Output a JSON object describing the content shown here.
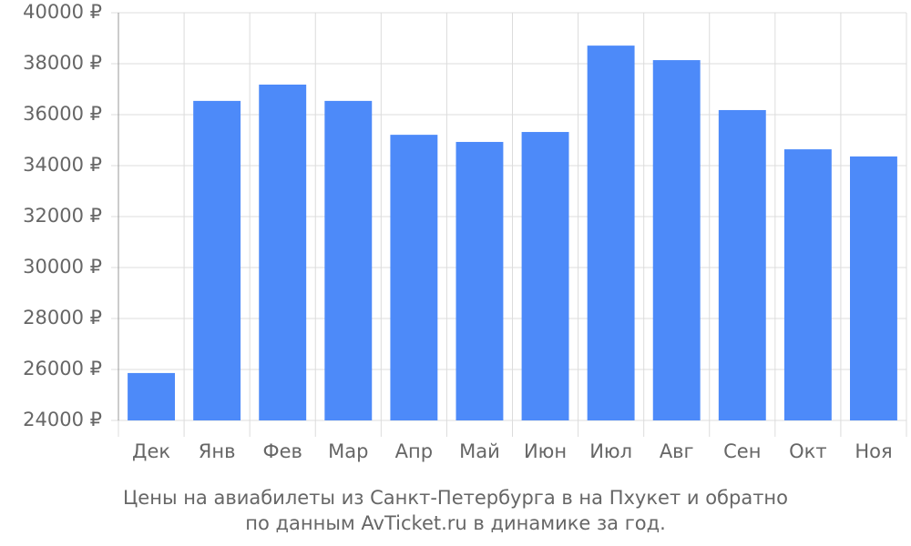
{
  "chart_data": {
    "type": "bar",
    "title": [
      "Цены на авиабилеты из Санкт-Петербурга в на Пхукет и обратно",
      "по данным AvTicket.ru в динамике за год."
    ],
    "categories": [
      "Дек",
      "Янв",
      "Фев",
      "Мар",
      "Апр",
      "Май",
      "Июн",
      "Июл",
      "Авг",
      "Сен",
      "Окт",
      "Ноя"
    ],
    "values": [
      25860,
      36540,
      37180,
      36540,
      35210,
      34930,
      35320,
      38710,
      38140,
      36180,
      34640,
      34360
    ],
    "color": "#4d8af9",
    "ylim": [
      24000,
      40000
    ],
    "yticks": [
      {
        "value": 24000,
        "label": "24000 ₽"
      },
      {
        "value": 26000,
        "label": "26000 ₽"
      },
      {
        "value": 28000,
        "label": "28000 ₽"
      },
      {
        "value": 30000,
        "label": "30000 ₽"
      },
      {
        "value": 32000,
        "label": "32000 ₽"
      },
      {
        "value": 34000,
        "label": "34000 ₽"
      },
      {
        "value": 36000,
        "label": "36000 ₽"
      },
      {
        "value": 38000,
        "label": "38000 ₽"
      },
      {
        "value": 40000,
        "label": "40000 ₽"
      }
    ],
    "grid": true
  }
}
